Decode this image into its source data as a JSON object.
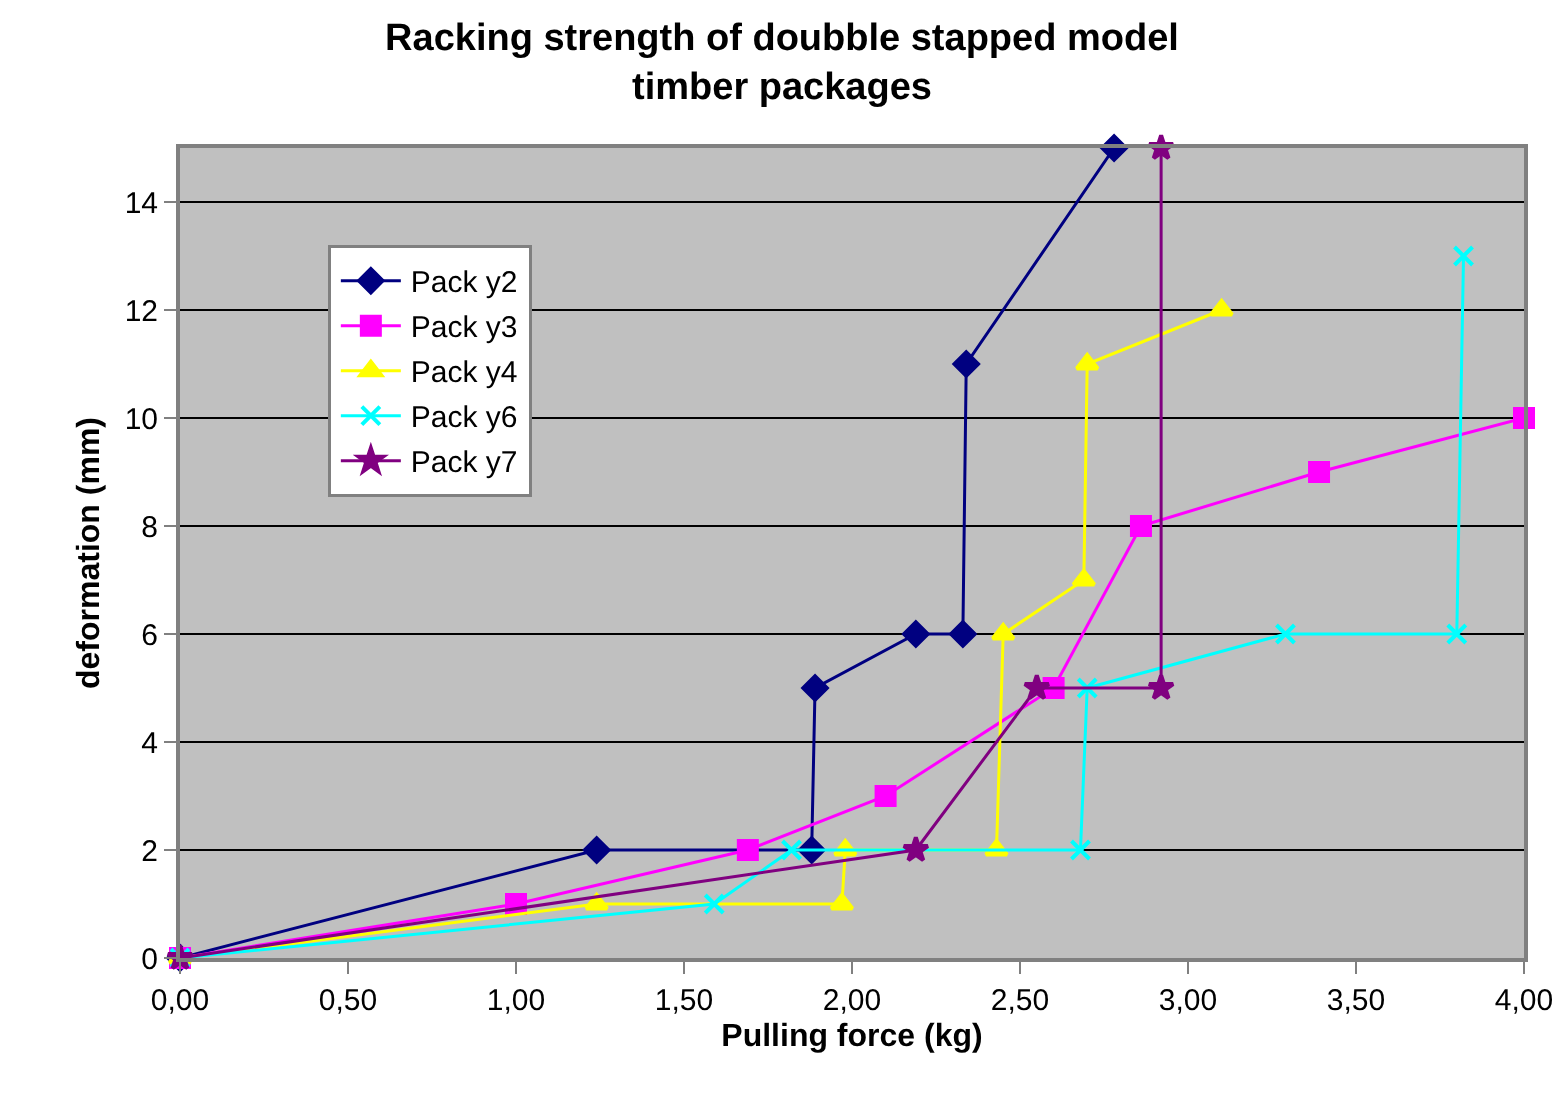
{
  "chart_data": {
    "type": "line",
    "title": "Racking strength of doubble stapped model\ntimber packages",
    "xlabel": "Pulling force (kg)",
    "ylabel": "deformation (mm)",
    "xlim": [
      0,
      4
    ],
    "xticks": [
      {
        "value": 0,
        "label": "0,00"
      },
      {
        "value": 0.5,
        "label": "0,50"
      },
      {
        "value": 1,
        "label": "1,00"
      },
      {
        "value": 1.5,
        "label": "1,50"
      },
      {
        "value": 2,
        "label": "2,00"
      },
      {
        "value": 2.5,
        "label": "2,50"
      },
      {
        "value": 3,
        "label": "3,00"
      },
      {
        "value": 3.5,
        "label": "3,50"
      },
      {
        "value": 4,
        "label": "4,00"
      }
    ],
    "ylim": [
      0,
      15
    ],
    "yticks": [
      0,
      2,
      4,
      6,
      8,
      10,
      12,
      14
    ],
    "grid": "y",
    "legend": "top left",
    "series": [
      {
        "name": "Pack y2",
        "color": "#000080",
        "marker": "diamond",
        "x": [
          0,
          1.24,
          1.88,
          1.89,
          2.19,
          2.33,
          2.34,
          2.78
        ],
        "values": [
          0,
          2,
          2,
          5,
          6,
          6,
          11,
          15
        ]
      },
      {
        "name": "Pack y3",
        "color": "#ff00ff",
        "marker": "square",
        "x": [
          0,
          1.0,
          1.69,
          2.1,
          2.6,
          2.86,
          3.39,
          4.0
        ],
        "values": [
          0,
          1,
          2,
          3,
          5,
          8,
          9,
          10
        ]
      },
      {
        "name": "Pack y4",
        "color": "#ffff00",
        "marker": "triangle",
        "x": [
          0,
          1.24,
          1.97,
          1.98,
          2.43,
          2.45,
          2.69,
          2.7,
          3.1
        ],
        "values": [
          0,
          1,
          1,
          2,
          2,
          6,
          7,
          11,
          12
        ]
      },
      {
        "name": "Pack y6",
        "color": "#00ffff",
        "marker": "cross",
        "x": [
          0,
          1.59,
          1.82,
          2.68,
          2.7,
          3.29,
          3.8,
          3.82
        ],
        "values": [
          0,
          1,
          2,
          2,
          5,
          6,
          6,
          13
        ]
      },
      {
        "name": "Pack y7",
        "color": "#800080",
        "marker": "star",
        "x": [
          0,
          2.19,
          2.55,
          2.92,
          2.92
        ],
        "values": [
          0,
          2,
          5,
          5,
          15
        ]
      }
    ]
  }
}
